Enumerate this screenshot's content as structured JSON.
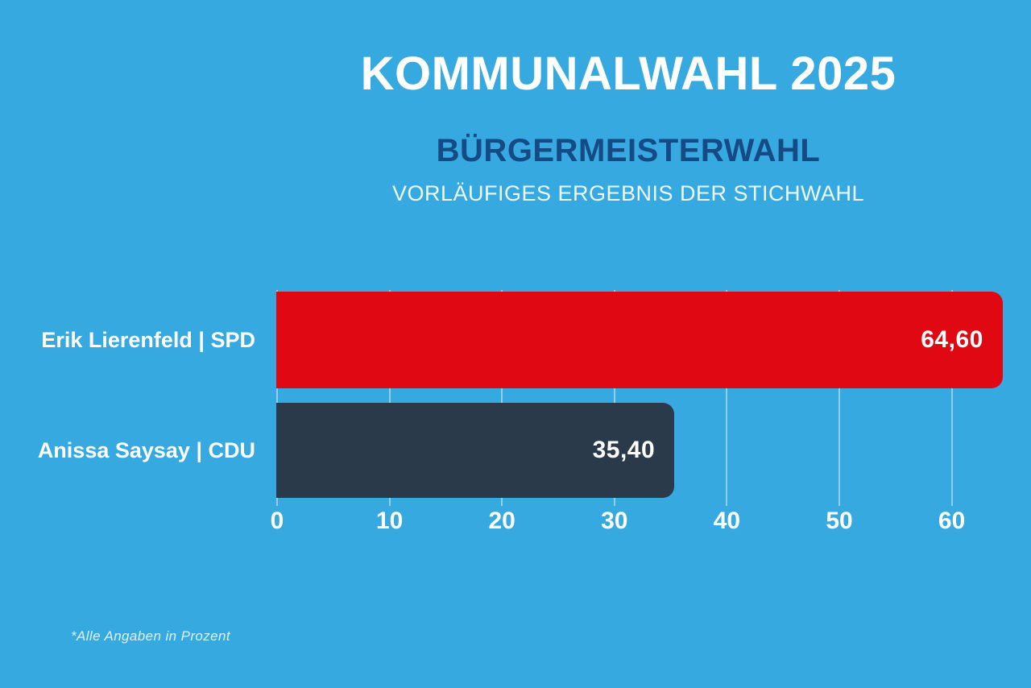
{
  "header": {
    "title": "KOMMUNALWAHL 2025",
    "subtitle": "BÜRGERMEISTERWAHL",
    "result_line": "VORLÄUFIGES ERGEBNIS DER STICHWAHL"
  },
  "chart_data": {
    "type": "bar",
    "orientation": "horizontal",
    "title": "Bürgermeisterwahl – Vorläufiges Ergebnis der Stichwahl",
    "unit": "percent",
    "categories": [
      "Erik Lierenfeld | SPD",
      "Anissa Saysay | CDU"
    ],
    "values": [
      64.6,
      35.4
    ],
    "value_labels": [
      "64,60",
      "35,40"
    ],
    "bar_colors": [
      "#e00813",
      "#2b3a4a"
    ],
    "xlim": [
      0,
      67
    ],
    "xticks": [
      0,
      10,
      20,
      30,
      40,
      50,
      60
    ],
    "grid": true,
    "legend": false
  },
  "footer": {
    "note": "*Alle Angaben in Prozent"
  },
  "colors": {
    "background": "#36a9e1",
    "title_text": "#ffffff",
    "subtitle_text": "#164a85",
    "gridline": "rgba(255,255,255,0.45)",
    "spd_red": "#e00813",
    "cdu_dark": "#2b3a4a"
  }
}
